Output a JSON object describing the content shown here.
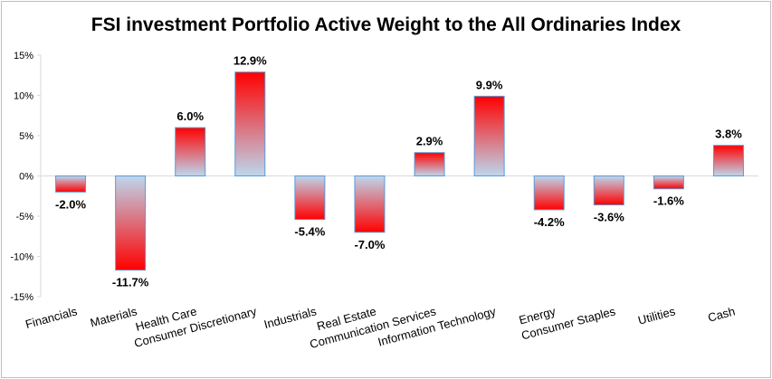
{
  "chart_data": {
    "type": "bar",
    "title": "FSI investment Portfolio Active Weight to the All Ordinaries Index",
    "xlabel": "",
    "ylabel": "",
    "ylim": [
      -15,
      15
    ],
    "yticks": [
      15,
      10,
      5,
      0,
      -5,
      -10,
      -15
    ],
    "ytick_labels": [
      "15%",
      "10%",
      "5%",
      "0%",
      "-5%",
      "-10%",
      "-15%"
    ],
    "categories": [
      "Financials",
      "Materials",
      "Health Care",
      "Consumer Discretionary",
      "Industrials",
      "Real Estate",
      "Communication Services",
      "Information Technology",
      "Energy",
      "Consumer Staples",
      "Utilities",
      "Cash"
    ],
    "values": [
      -2.0,
      -11.7,
      6.0,
      12.9,
      -5.4,
      -7.0,
      2.9,
      9.9,
      -4.2,
      -3.6,
      -1.6,
      3.8
    ],
    "data_labels": [
      "-2.0%",
      "-11.7%",
      "6.0%",
      "12.9%",
      "-5.4%",
      "-7.0%",
      "2.9%",
      "9.9%",
      "-4.2%",
      "-3.6%",
      "-1.6%",
      "3.8%"
    ],
    "grid": false,
    "legend": "none",
    "colors": {
      "bar_strong": "#ff0000",
      "bar_light": "#bdd7ee",
      "bar_edge": "#5b9bd5",
      "axis": "#d9d9d9"
    }
  }
}
